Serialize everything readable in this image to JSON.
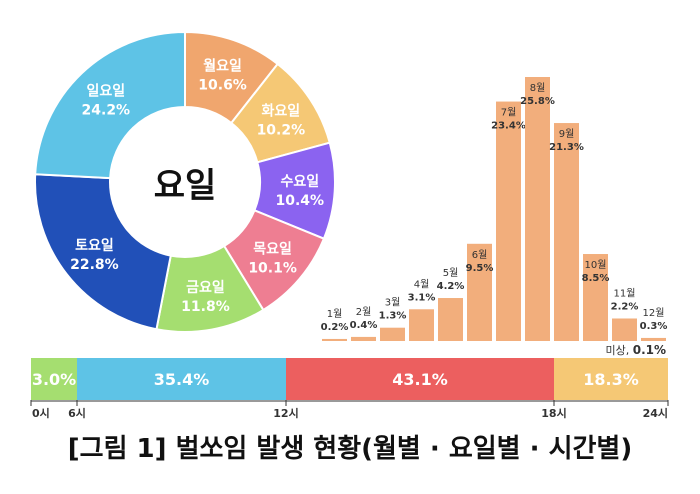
{
  "colors": {
    "weekday": [
      "#F0A66E",
      "#F5C875",
      "#8B63F0",
      "#EE7E92",
      "#A5DE70",
      "#2150B8",
      "#5EC3E6"
    ],
    "month_bar": "#F2AE7C",
    "time": [
      "#A5DE70",
      "#5EC3E6",
      "#EC5F5F",
      "#F5C875"
    ]
  },
  "chart_data": [
    {
      "type": "pie",
      "variant": "donut",
      "title": "요일",
      "categories": [
        "월요일",
        "화요일",
        "수요일",
        "목요일",
        "금요일",
        "토요일",
        "일요일"
      ],
      "values": [
        10.6,
        10.2,
        10.4,
        10.1,
        11.8,
        22.8,
        24.2
      ],
      "value_labels": [
        "10.6%",
        "10.2%",
        "10.4%",
        "10.1%",
        "11.8%",
        "22.8%",
        "24.2%"
      ]
    },
    {
      "type": "bar",
      "categories": [
        "1월",
        "2월",
        "3월",
        "4월",
        "5월",
        "6월",
        "7월",
        "8월",
        "9월",
        "10월",
        "11월",
        "12월"
      ],
      "values": [
        0.2,
        0.4,
        1.3,
        3.1,
        4.2,
        9.5,
        23.4,
        25.8,
        21.3,
        8.5,
        2.2,
        0.3
      ],
      "value_labels": [
        "0.2%",
        "0.4%",
        "1.3%",
        "3.1%",
        "4.2%",
        "9.5%",
        "23.4%",
        "25.8%",
        "21.3%",
        "8.5%",
        "2.2%",
        "0.3%"
      ],
      "annotation": {
        "label": "미상,",
        "value": "0.1%"
      }
    },
    {
      "type": "bar",
      "variant": "stacked-horizontal",
      "segments": [
        {
          "start": 0,
          "end": 6,
          "value": 3.0,
          "label": "3.0%"
        },
        {
          "start": 6,
          "end": 12,
          "value": 35.4,
          "label": "35.4%"
        },
        {
          "start": 12,
          "end": 18,
          "value": 43.1,
          "label": "43.1%"
        },
        {
          "start": 18,
          "end": 24,
          "value": 18.3,
          "label": "18.3%"
        }
      ],
      "ticks": [
        "0시",
        "6시",
        "12시",
        "18시",
        "24시"
      ]
    }
  ],
  "caption": "[그림 1] 벌쏘임 발생 현황(월별 · 요일별 · 시간별)"
}
